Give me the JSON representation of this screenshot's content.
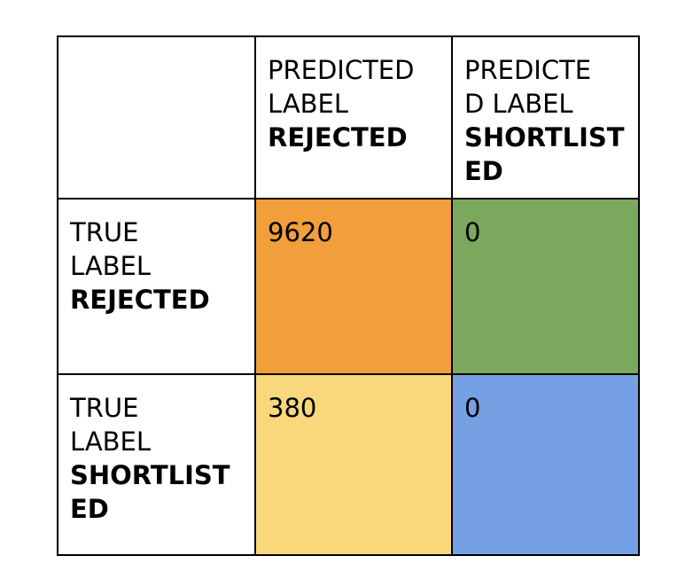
{
  "chart_data": {
    "type": "table",
    "columns": [
      {
        "lines": [
          "PREDICTED",
          "LABEL"
        ],
        "bold": "REJECTED"
      },
      {
        "lines": [
          "PREDICTE",
          "D LABEL"
        ],
        "bold": "SHORTLISTED"
      }
    ],
    "rows": [
      {
        "lines": [
          "TRUE",
          "LABEL"
        ],
        "bold": "REJECTED",
        "values": [
          "9620",
          "0"
        ]
      },
      {
        "lines": [
          "TRUE",
          "LABEL"
        ],
        "bold": "SHORTLISTED",
        "values": [
          "380",
          "0"
        ]
      }
    ],
    "cell_colors": [
      [
        "#f29e3a",
        "#7aa85c"
      ],
      [
        "#f8d87a",
        "#76a0e4"
      ]
    ]
  }
}
